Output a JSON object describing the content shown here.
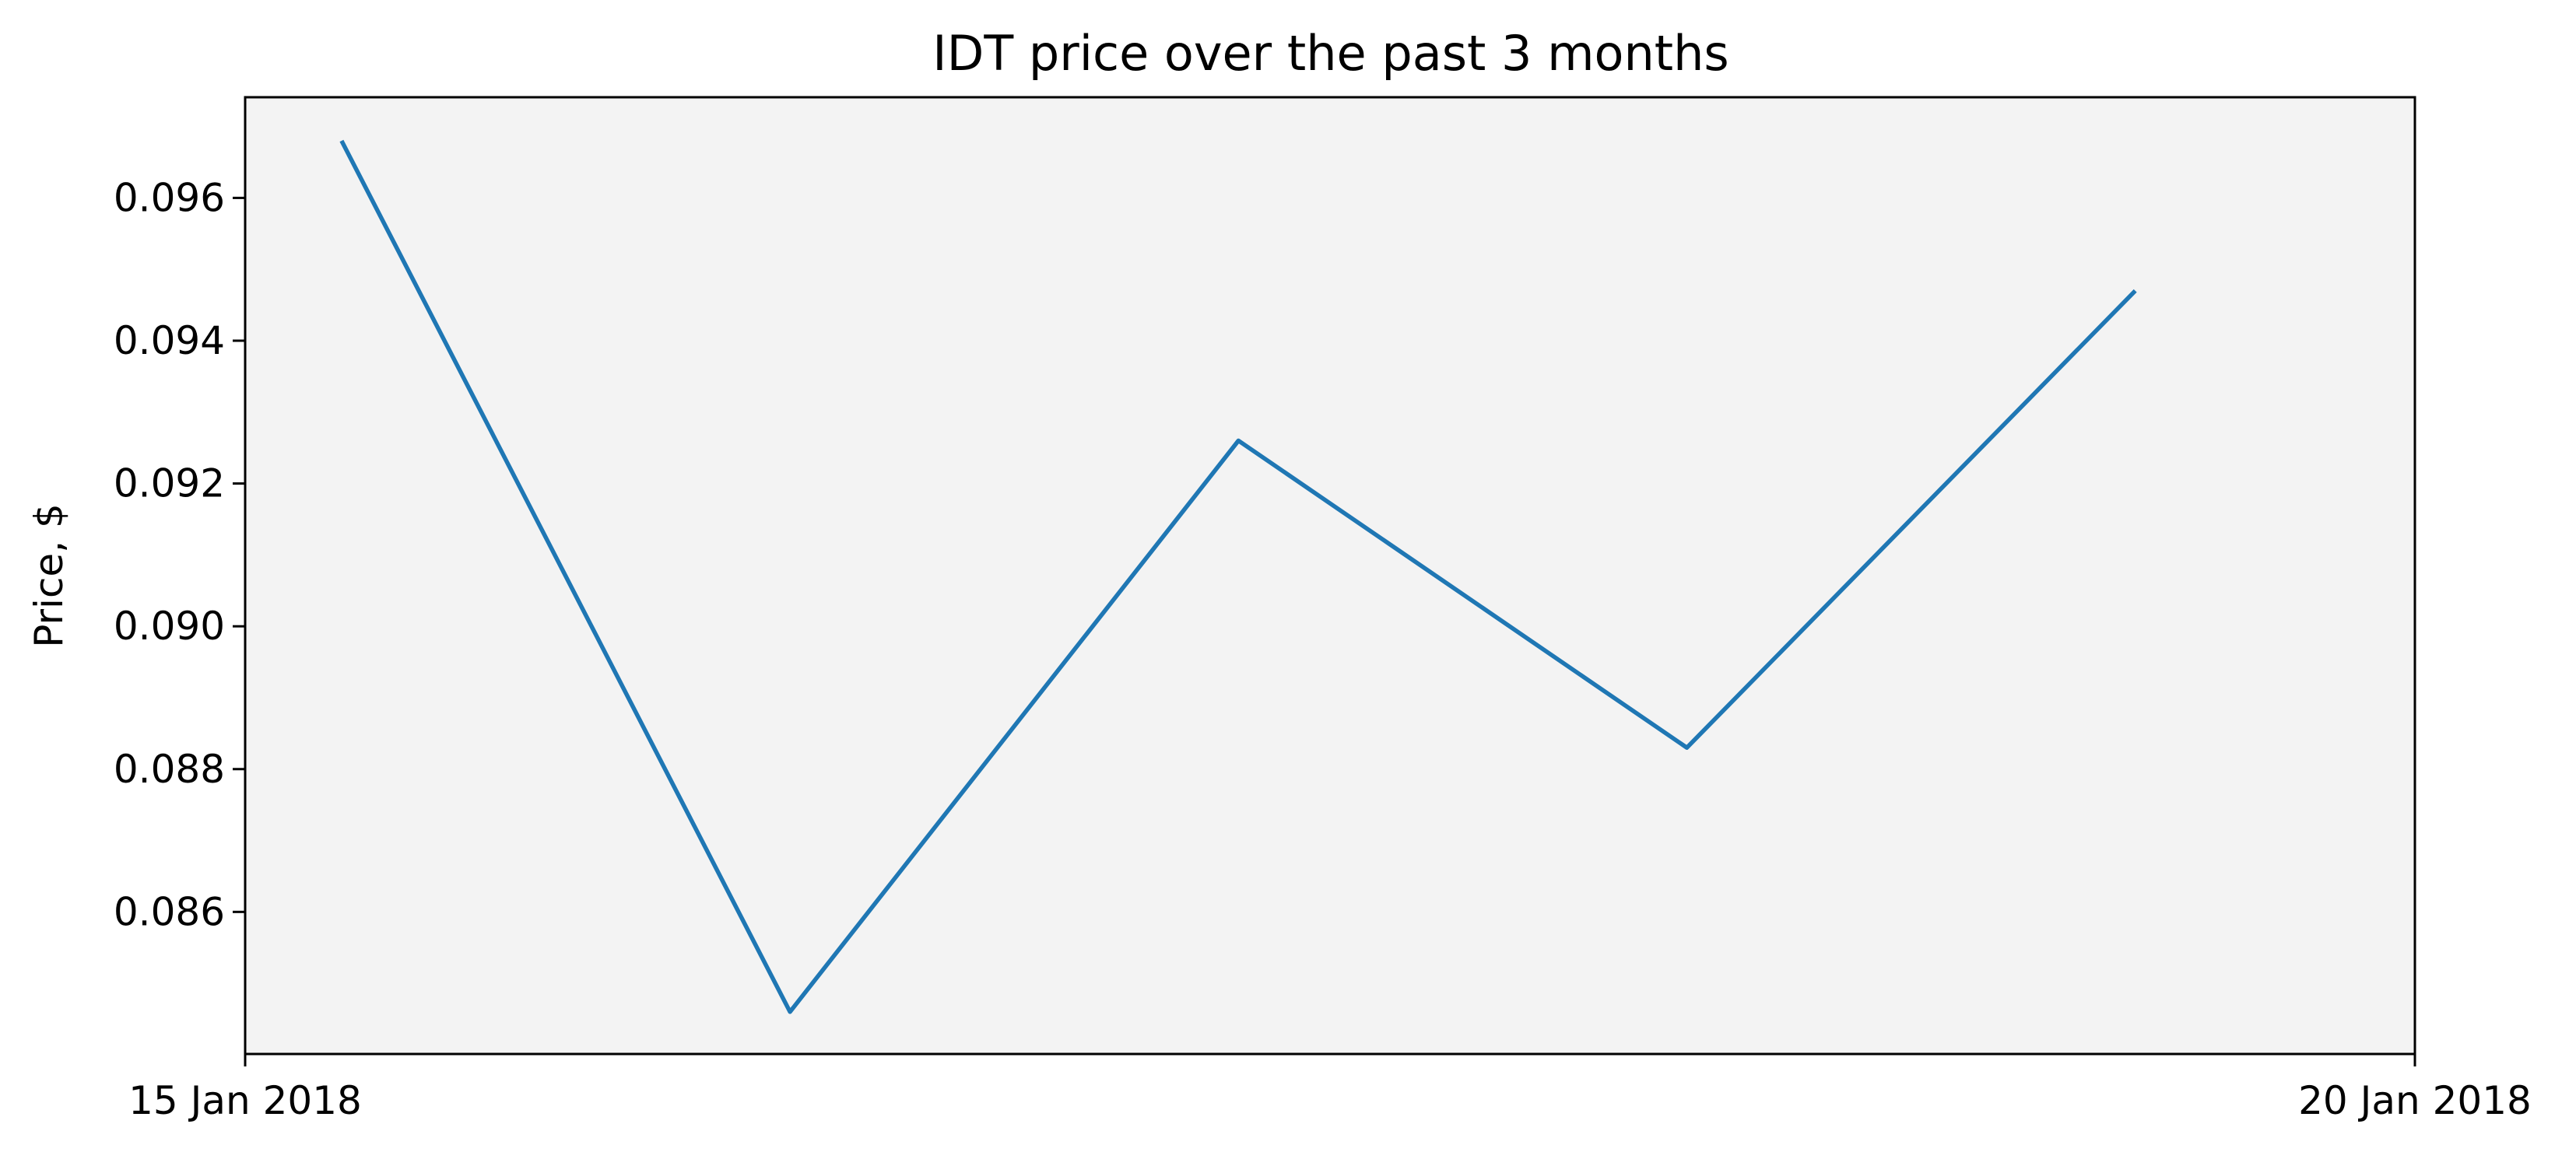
{
  "chart_data": {
    "type": "line",
    "title": "IDT price over the past 3 months",
    "xlabel": "",
    "ylabel": "Price, $",
    "x_axis": {
      "type": "date",
      "ticks": [
        "15 Jan 2018",
        "20 Jan 2018"
      ],
      "range": [
        "2018-01-15",
        "2018-01-20"
      ]
    },
    "series": [
      {
        "x": [
          "2018-01-15T05:20",
          "2018-01-16T06:08",
          "2018-01-17T06:56",
          "2018-01-18T07:44",
          "2018-01-19T08:32"
        ],
        "values": [
          0.0968,
          0.0846,
          0.0926,
          0.0883,
          0.0947
        ],
        "color": "#1f77b4"
      }
    ],
    "yticks": [
      "0.086",
      "0.088",
      "0.090",
      "0.092",
      "0.094",
      "0.096"
    ],
    "ylim": [
      0.08401,
      0.09741
    ],
    "grid": false,
    "plot_background": "#f3f3f3"
  }
}
